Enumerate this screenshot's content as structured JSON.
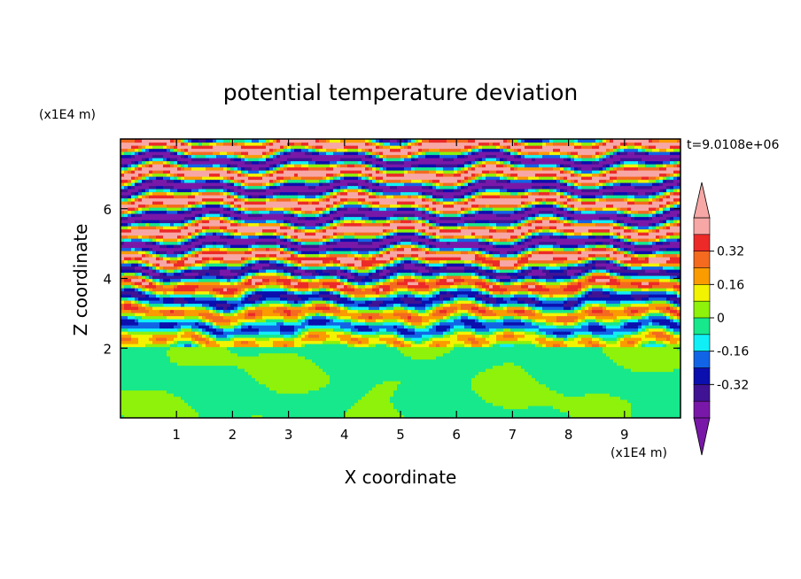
{
  "chart_data": {
    "type": "heatmap",
    "title": "potential temperature deviation",
    "xlabel": "X coordinate",
    "ylabel": "Z coordinate",
    "x_unit": "(x1E4 m)",
    "y_unit": "(x1E4 m)",
    "time_label": "t=9.0108e+06",
    "xlim": [
      0,
      10
    ],
    "ylim": [
      0,
      8
    ],
    "xticks": [
      "1",
      "2",
      "3",
      "4",
      "5",
      "6",
      "7",
      "8",
      "9"
    ],
    "yticks": [
      "2",
      "4",
      "6"
    ],
    "colorbar": {
      "levels": [
        -0.48,
        -0.4,
        -0.32,
        -0.24,
        -0.16,
        -0.08,
        0,
        0.08,
        0.16,
        0.24,
        0.32,
        0.4,
        0.48
      ],
      "tick_labels": [
        "0.32",
        "0.16",
        "0",
        "-0.16",
        "-0.32"
      ],
      "tick_values": [
        0.32,
        0.16,
        0,
        -0.16,
        -0.32
      ],
      "colors_high_to_low": [
        "#f7a7a5",
        "#ec2a28",
        "#f46a1f",
        "#fa9b00",
        "#f2f300",
        "#8ef20a",
        "#17e88c",
        "#10eff6",
        "#1264e6",
        "#0b0fae",
        "#401394",
        "#7918a8"
      ],
      "extend": "both"
    },
    "bands_z": [
      {
        "z": 7.8,
        "value": -0.45
      },
      {
        "z": 7.4,
        "value": 0.45
      },
      {
        "z": 7.0,
        "value": -0.45
      },
      {
        "z": 6.6,
        "value": 0.45
      },
      {
        "z": 6.2,
        "value": -0.45
      },
      {
        "z": 5.8,
        "value": 0.45
      },
      {
        "z": 5.4,
        "value": -0.45
      },
      {
        "z": 5.0,
        "value": 0.45
      },
      {
        "z": 4.6,
        "value": -0.4
      },
      {
        "z": 4.2,
        "value": 0.35
      },
      {
        "z": 3.8,
        "value": -0.3
      },
      {
        "z": 3.4,
        "value": 0.25
      },
      {
        "z": 3.0,
        "value": -0.2
      },
      {
        "z": 2.6,
        "value": 0.2
      },
      {
        "z": 2.2,
        "value": -0.2
      },
      {
        "z": 1.0,
        "value": 0.02
      }
    ]
  }
}
